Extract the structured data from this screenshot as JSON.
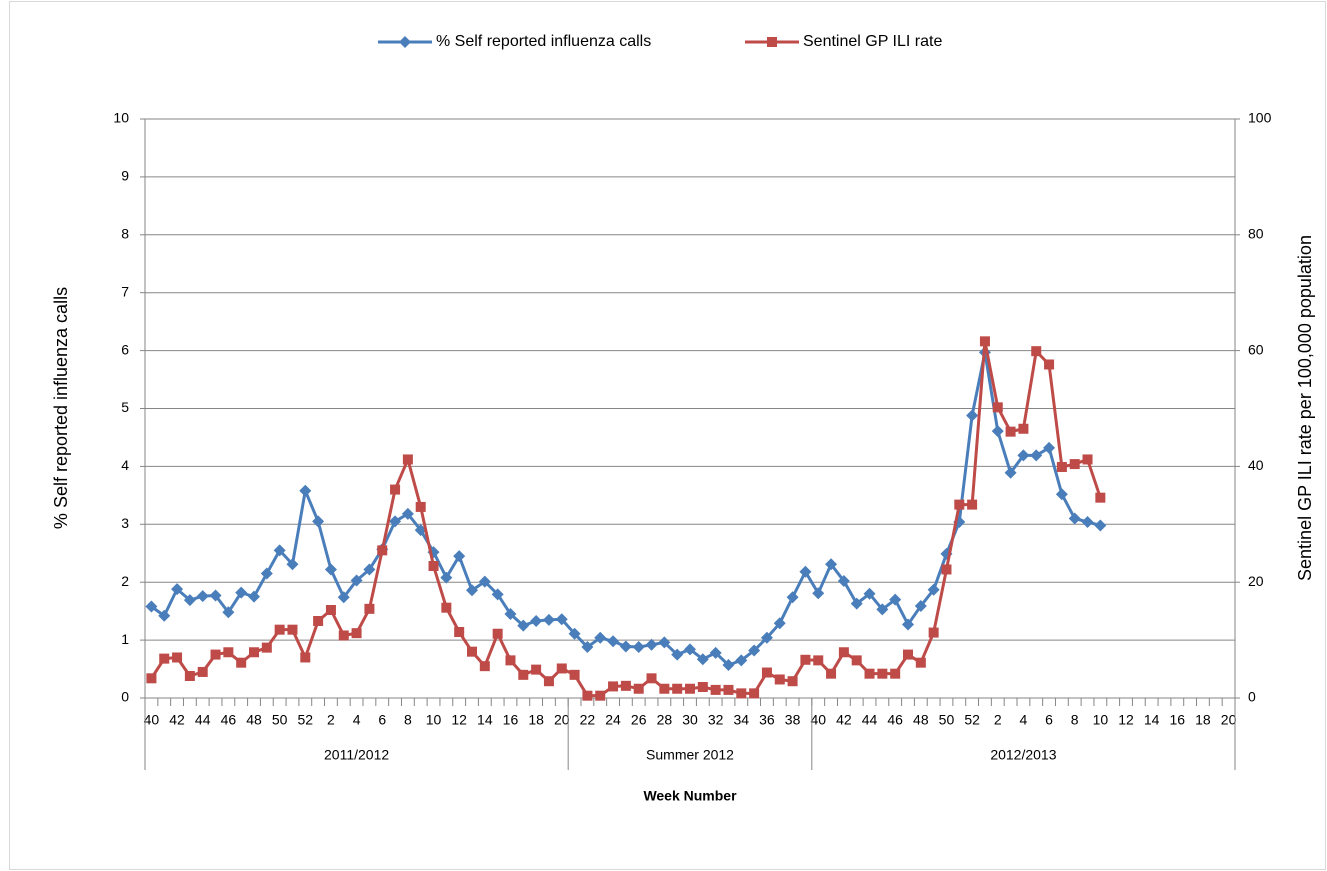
{
  "chart_data": {
    "type": "line",
    "x_label": "Week Number",
    "y_label": "% Self reported influenza calls",
    "y2_label": "Sentinel GP ILI rate per 100,000 population",
    "categories": [
      "40",
      null,
      "42",
      null,
      "44",
      null,
      "46",
      null,
      "48",
      null,
      "50",
      null,
      "52",
      null,
      "2",
      null,
      "4",
      null,
      "6",
      null,
      "8",
      null,
      "10",
      null,
      "12",
      null,
      "14",
      null,
      "16",
      null,
      "18",
      null,
      "20",
      null,
      "22",
      null,
      "24",
      null,
      "26",
      null,
      "28",
      null,
      "30",
      null,
      "32",
      null,
      "34",
      null,
      "36",
      null,
      "38",
      null,
      "40",
      null,
      "42",
      null,
      "44",
      null,
      "46",
      null,
      "48",
      null,
      "50",
      null,
      "52",
      null,
      "2",
      null,
      "4",
      null,
      "6",
      null,
      "8",
      null,
      "10",
      null,
      "12",
      null,
      "14",
      null,
      "16",
      null,
      "18",
      null,
      "20"
    ],
    "category_groups": [
      {
        "label": "2011/2012",
        "span": 33
      },
      {
        "label": "Summer 2012",
        "span": 19
      },
      {
        "label": "2012/2013",
        "span": 33
      }
    ],
    "series": [
      {
        "name": "% Self reported influenza calls",
        "color": "#4a7ebb",
        "marker": "diamond",
        "axis": "y",
        "values": [
          1.58,
          1.42,
          1.88,
          1.69,
          1.76,
          1.77,
          1.48,
          1.82,
          1.75,
          2.15,
          2.55,
          2.31,
          3.58,
          3.05,
          2.22,
          1.74,
          2.03,
          2.22,
          2.57,
          3.05,
          3.18,
          2.9,
          2.52,
          2.08,
          2.45,
          1.86,
          2.01,
          1.79,
          1.45,
          1.25,
          1.33,
          1.35,
          1.36,
          1.11,
          0.88,
          1.04,
          0.98,
          0.89,
          0.88,
          0.92,
          0.96,
          0.75,
          0.84,
          0.67,
          0.78,
          0.57,
          0.65,
          0.82,
          1.04,
          1.29,
          1.74,
          2.18,
          1.81,
          2.31,
          2.02,
          1.63,
          1.8,
          1.53,
          1.7,
          1.27,
          1.59,
          1.87,
          2.49,
          3.04,
          4.88,
          5.97,
          4.61,
          3.89,
          4.19,
          4.19,
          4.32,
          3.52,
          3.1,
          3.04,
          2.98,
          null,
          null,
          null,
          null,
          null,
          null,
          null,
          null,
          null,
          null
        ]
      },
      {
        "name": "Sentinel GP ILI rate",
        "color": "#be4b48",
        "marker": "square",
        "axis": "y2",
        "values": [
          3.4,
          6.8,
          7.0,
          3.8,
          4.5,
          7.5,
          7.9,
          6.1,
          7.9,
          8.7,
          11.8,
          11.8,
          7.0,
          13.3,
          15.2,
          10.8,
          11.2,
          15.4,
          25.5,
          36.0,
          41.2,
          33.0,
          22.8,
          15.6,
          11.4,
          8.0,
          5.5,
          11.1,
          6.5,
          4.0,
          4.9,
          2.9,
          5.1,
          4.0,
          0.4,
          0.4,
          2.0,
          2.1,
          1.6,
          3.4,
          1.6,
          1.6,
          1.6,
          1.9,
          1.4,
          1.4,
          0.8,
          0.8,
          4.4,
          3.2,
          2.9,
          6.6,
          6.5,
          4.2,
          7.9,
          6.5,
          4.2,
          4.2,
          4.2,
          7.5,
          6.1,
          11.3,
          22.2,
          33.4,
          33.4,
          61.6,
          50.2,
          46.0,
          46.5,
          59.9,
          57.6,
          39.9,
          40.4,
          41.2,
          34.6,
          null,
          null,
          null,
          null,
          null,
          null,
          null,
          null,
          null,
          null
        ]
      }
    ],
    "ylim": [
      0,
      10
    ],
    "yticks": [
      0,
      1,
      2,
      3,
      4,
      5,
      6,
      7,
      8,
      9,
      10
    ],
    "y2lim": [
      0,
      100
    ],
    "y2ticks": [
      0,
      20,
      40,
      60,
      80,
      100
    ],
    "grid": true,
    "legend": "top"
  }
}
